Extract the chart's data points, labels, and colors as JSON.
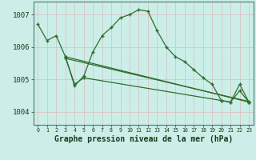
{
  "title": "Graphe pression niveau de la mer (hPa)",
  "background_color": "#cceee8",
  "grid_color": "#aaddcc",
  "line_color": "#2d6e2d",
  "xlim": [
    -0.5,
    23.5
  ],
  "ylim": [
    1003.6,
    1007.4
  ],
  "yticks": [
    1004,
    1005,
    1006,
    1007
  ],
  "xtick_labels": [
    "0",
    "1",
    "2",
    "3",
    "4",
    "5",
    "6",
    "7",
    "8",
    "9",
    "10",
    "11",
    "12",
    "13",
    "14",
    "15",
    "16",
    "17",
    "18",
    "19",
    "20",
    "21",
    "22",
    "23"
  ],
  "series1_x": [
    0,
    1,
    2,
    3,
    4,
    5,
    6,
    7,
    8,
    9,
    10,
    11,
    12,
    13,
    14,
    15,
    16,
    17,
    18,
    19,
    20,
    21,
    22,
    23
  ],
  "series1_y": [
    1006.7,
    1006.2,
    1006.35,
    1005.7,
    1004.8,
    1005.1,
    1005.85,
    1006.35,
    1006.6,
    1006.9,
    1007.0,
    1007.15,
    1007.1,
    1006.5,
    1006.0,
    1005.7,
    1005.55,
    1005.3,
    1005.05,
    1004.85,
    1004.35,
    1004.3,
    1004.65,
    1004.3
  ],
  "series2_x": [
    3,
    23
  ],
  "series2_y": [
    1005.7,
    1004.3
  ],
  "series3_x": [
    3,
    23
  ],
  "series3_y": [
    1005.65,
    1004.32
  ],
  "series4_x": [
    3,
    4,
    5,
    20,
    21,
    22,
    23
  ],
  "series4_y": [
    1005.7,
    1004.85,
    1005.05,
    1004.35,
    1004.3,
    1004.85,
    1004.3
  ],
  "xlabel_fontsize": 7,
  "ytick_fontsize": 6.5,
  "xtick_fontsize": 4.8,
  "figwidth": 3.2,
  "figheight": 2.0,
  "dpi": 100
}
